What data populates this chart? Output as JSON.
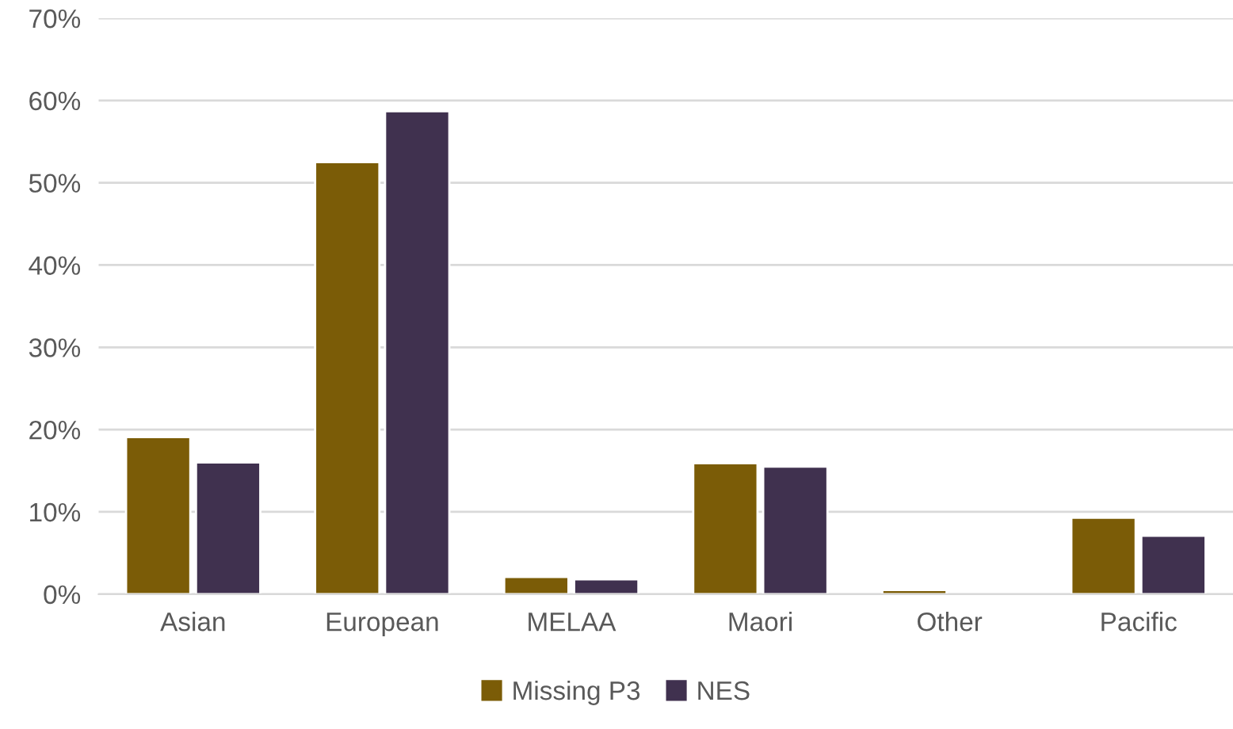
{
  "chart_data": {
    "type": "bar",
    "categories": [
      "Asian",
      "European",
      "MELAA",
      "Maori",
      "Other",
      "Pacific"
    ],
    "series": [
      {
        "name": "Missing P3",
        "color": "#7b5c07",
        "values": [
          19.1,
          52.5,
          2.1,
          15.9,
          0.5,
          9.3
        ]
      },
      {
        "name": "NES",
        "color": "#40314f",
        "values": [
          16.0,
          58.7,
          1.8,
          15.5,
          null,
          7.1
        ]
      }
    ],
    "ylim": [
      0,
      70
    ],
    "yticks": [
      {
        "value": 0,
        "label": "0%"
      },
      {
        "value": 10,
        "label": "10%"
      },
      {
        "value": 20,
        "label": "20%"
      },
      {
        "value": 30,
        "label": "30%"
      },
      {
        "value": 40,
        "label": "40%"
      },
      {
        "value": 50,
        "label": "50%"
      },
      {
        "value": 60,
        "label": "60%"
      },
      {
        "value": 70,
        "label": "70%"
      }
    ],
    "grid": "y",
    "legend": "bottom"
  }
}
